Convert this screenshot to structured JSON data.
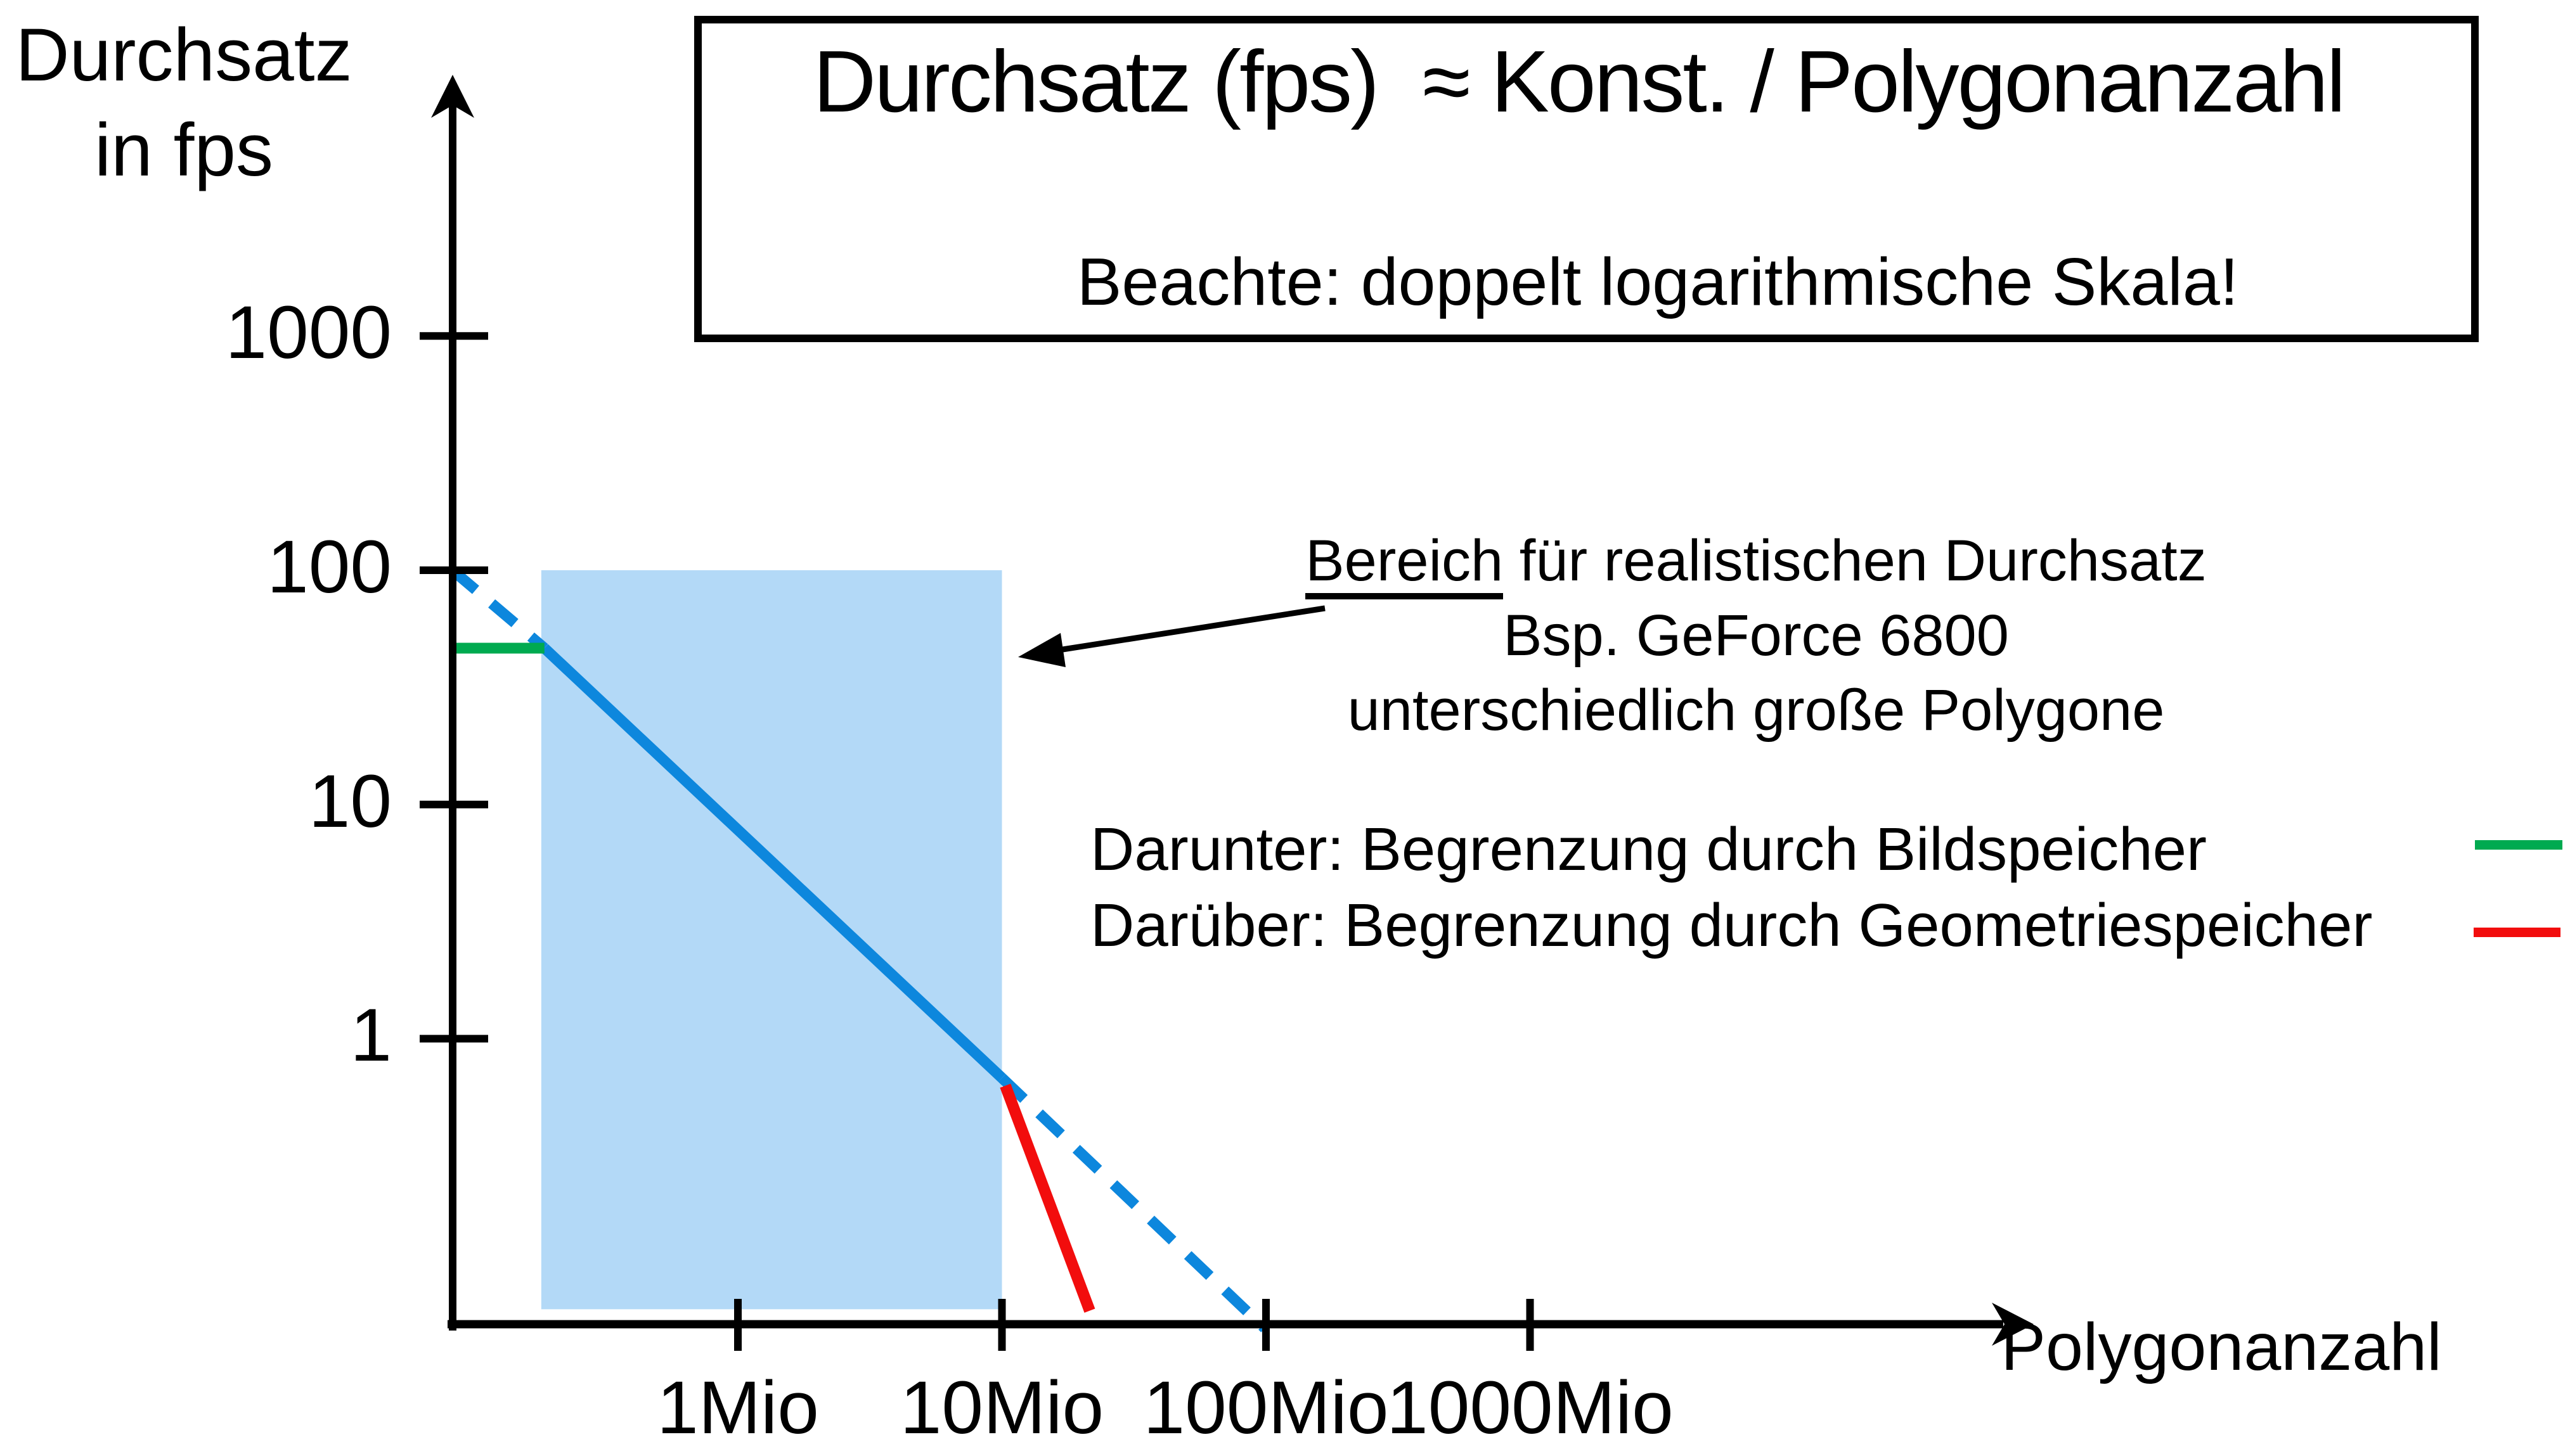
{
  "slide": {
    "background": "#ffffff"
  },
  "title_box": {
    "line1": "Durchsatz (fps)  ≈ Konst. / Polygonanzahl",
    "line2": "Beachte: doppelt logarithmische Skala!"
  },
  "y_axis": {
    "title_line1": "Durchsatz",
    "title_line2": "in fps"
  },
  "x_axis": {
    "label": "Polygonanzahl"
  },
  "annotation": {
    "underlined": "Bereich",
    "line1_rest": " für realistischen Durchsatz",
    "line2": "Bsp. GeForce 6800",
    "line3": "unterschiedlich große Polygone"
  },
  "legend": {
    "items": [
      {
        "label": "Darunter: Begrenzung durch Bildspeicher",
        "color": "#00aa50"
      },
      {
        "label": "Darüber: Begrenzung durch Geometriespeicher",
        "color": "#f20d0d"
      }
    ]
  },
  "chart_data": {
    "type": "line",
    "title": "Durchsatz (fps) ≈ Konst. / Polygonanzahl",
    "subtitle": "Beachte: doppelt logarithmische Skala!",
    "xlabel": "Polygonanzahl",
    "ylabel": "Durchsatz in fps",
    "x_scale": "log",
    "y_scale": "log",
    "x_unit": "Mio Polygone",
    "grid": false,
    "x_ticks": [
      {
        "value": 1,
        "label": "1Mio"
      },
      {
        "value": 10,
        "label": "10Mio"
      },
      {
        "value": 100,
        "label": "100Mio"
      },
      {
        "value": 1000,
        "label": "1000Mio"
      }
    ],
    "y_ticks": [
      {
        "value": 1000,
        "label": "1000"
      },
      {
        "value": 100,
        "label": "100"
      },
      {
        "value": 10,
        "label": "10"
      },
      {
        "value": 1,
        "label": "1"
      }
    ],
    "region": {
      "name": "realistic-throughput-range",
      "x_range_mio": [
        0.18,
        10
      ],
      "y_range_fps": [
        0.07,
        100
      ],
      "color": "#b3d9f7"
    },
    "series": [
      {
        "name": "konst-durch-polygonanzahl-dashed-left",
        "style": "dashed",
        "color": "#0d87dd",
        "points_mio_fps": [
          [
            0.083,
            100
          ],
          [
            0.185,
            46.5
          ]
        ]
      },
      {
        "name": "konst-durch-polygonanzahl-solid",
        "style": "solid",
        "color": "#0d87dd",
        "points_mio_fps": [
          [
            0.185,
            46.5
          ],
          [
            10,
            0.68
          ]
        ]
      },
      {
        "name": "konst-durch-polygonanzahl-dashed-right",
        "style": "dashed",
        "color": "#0d87dd",
        "points_mio_fps": [
          [
            10,
            0.68
          ],
          [
            99,
            0.058
          ]
        ]
      },
      {
        "name": "begrenzung-bildspeicher",
        "style": "solid",
        "color": "#00aa50",
        "points_mio_fps": [
          [
            0.083,
            46.5
          ],
          [
            0.185,
            46.5
          ]
        ]
      },
      {
        "name": "begrenzung-geometriespeicher",
        "style": "solid",
        "color": "#f20d0d",
        "points_mio_fps": [
          [
            10.3,
            0.63
          ],
          [
            21.5,
            0.069
          ]
        ]
      }
    ]
  }
}
